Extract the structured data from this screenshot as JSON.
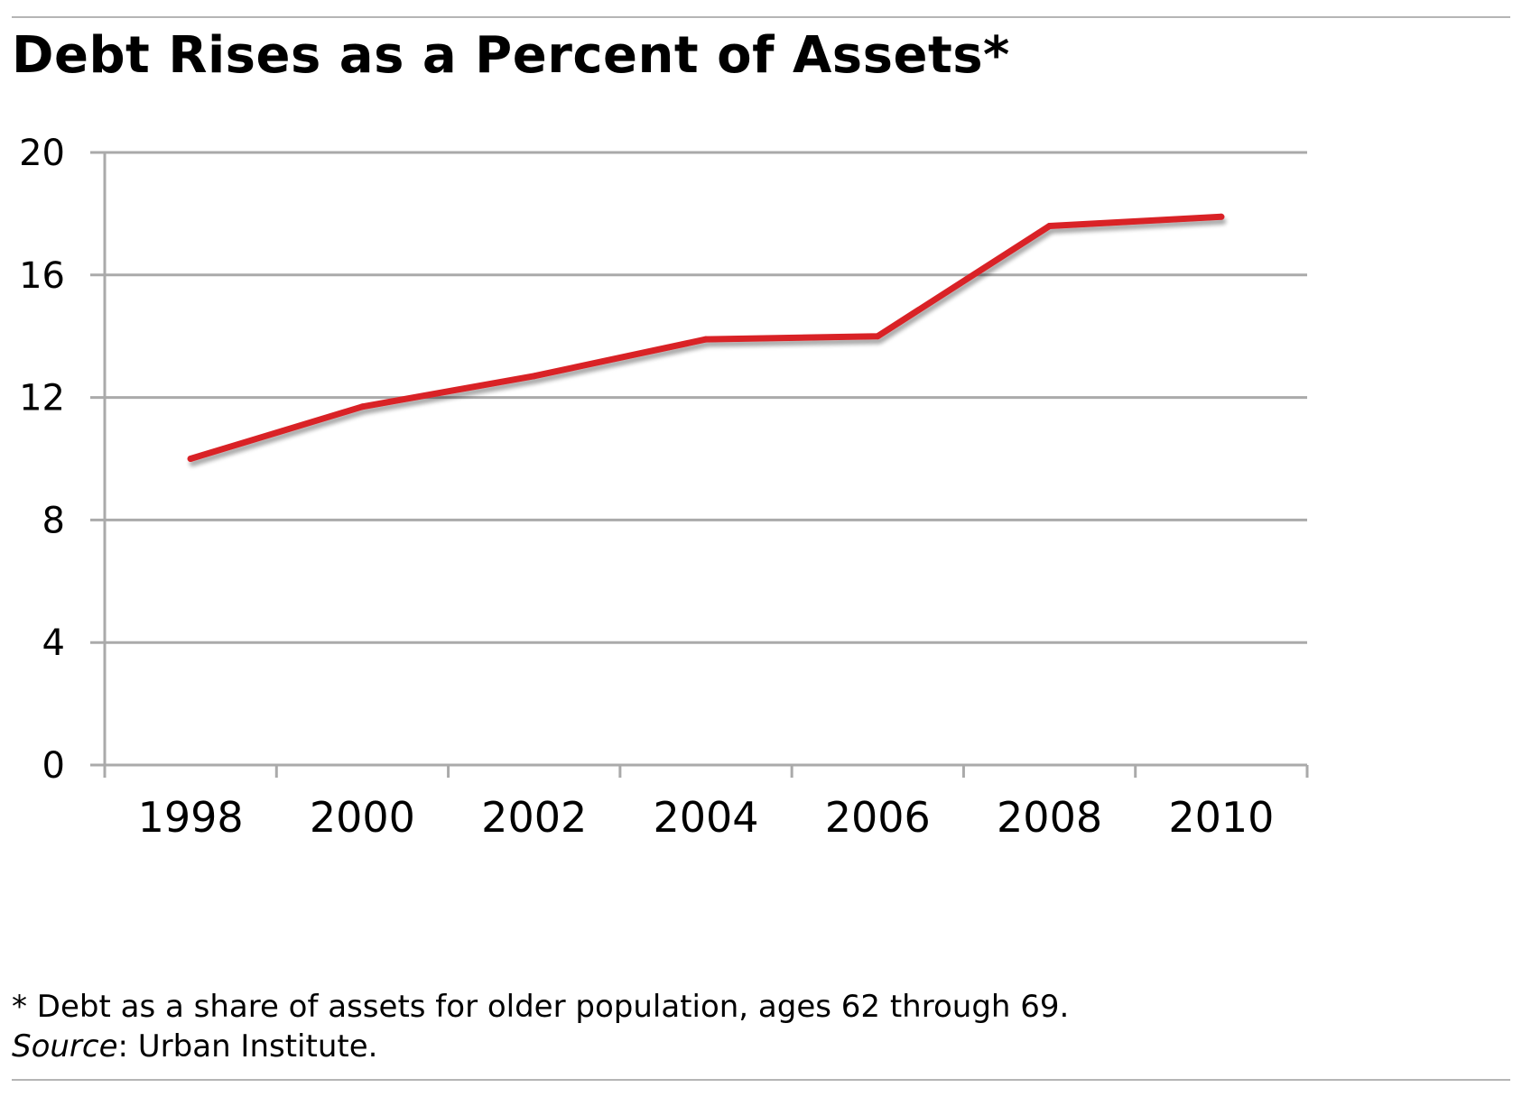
{
  "chart_data": {
    "type": "line",
    "title": "Debt Rises as a Percent of Assets*",
    "xlabel": "",
    "ylabel": "",
    "x": [
      1998,
      2000,
      2002,
      2004,
      2006,
      2008,
      2010
    ],
    "x_tick_labels": [
      "1998",
      "2000",
      "2002",
      "2004",
      "2006",
      "2008",
      "2010"
    ],
    "series": [
      {
        "values": [
          10.0,
          11.7,
          12.7,
          13.9,
          14.0,
          17.6,
          17.9
        ],
        "color": "#d92127"
      }
    ],
    "y_ticks": [
      0,
      4,
      8,
      12,
      16,
      20
    ],
    "ylim": [
      0,
      20
    ],
    "grid": "horizontal",
    "legend": "none"
  },
  "footnote": "* Debt as a share of assets for older population, ages 62 through 69.",
  "source": {
    "label": "Source",
    "text": ": Urban Institute."
  },
  "colors": {
    "line": "#d92127",
    "grid": "#aaaaaa",
    "axis": "#aaaaaa",
    "rule": "#b5b5b5"
  }
}
